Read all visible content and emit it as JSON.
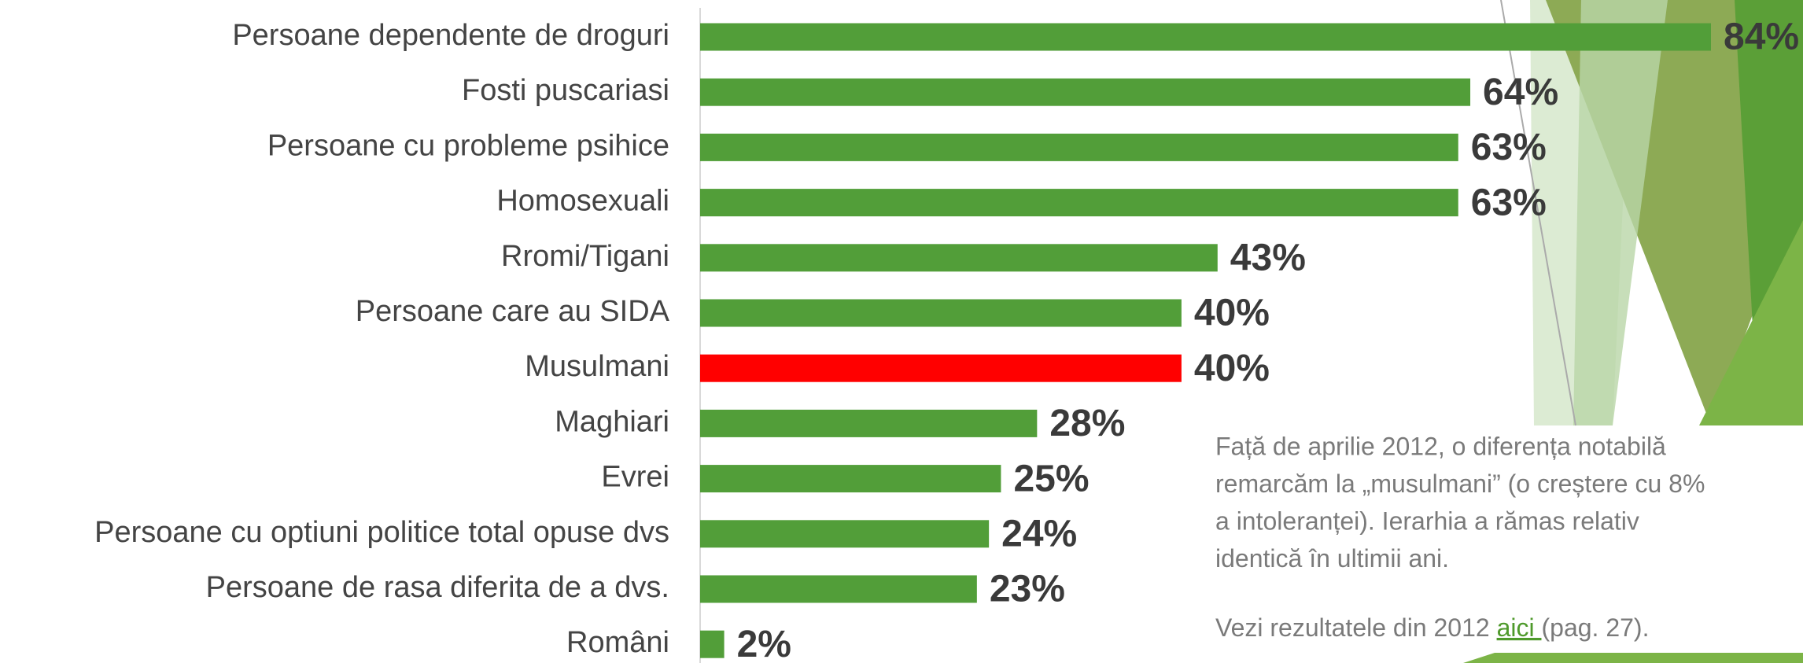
{
  "chart_data": {
    "type": "hbar",
    "categories": [
      "Persoane dependente de droguri",
      "Fosti puscariasi",
      "Persoane cu probleme psihice",
      "Homosexuali",
      "Rromi/Tigani",
      "Persoane care au SIDA",
      "Musulmani",
      "Maghiari",
      "Evrei",
      "Persoane cu optiuni politice total opuse dvs",
      "Persoane de rasa diferita de a dvs.",
      "Români"
    ],
    "values": [
      84,
      64,
      63,
      63,
      43,
      40,
      40,
      28,
      25,
      24,
      23,
      2
    ],
    "value_labels": [
      "84%",
      "64%",
      "63%",
      "63%",
      "43%",
      "40%",
      "40%",
      "28%",
      "25%",
      "24%",
      "23%",
      "2%"
    ],
    "colors": [
      "#529e39",
      "#529e39",
      "#529e39",
      "#529e39",
      "#529e39",
      "#529e39",
      "#ff0000",
      "#529e39",
      "#529e39",
      "#529e39",
      "#529e39",
      "#529e39"
    ],
    "xlim": [
      0,
      100
    ],
    "note_lines": [
      "Față de aprilie 2012, o diferența notabilă",
      "remarcăm la „musulmani” (o creștere cu 8%",
      "a intoleranței). Ierarhia a rămas relativ",
      "identică în ultimii ani."
    ],
    "link_note": {
      "before": "Vezi rezultatele din 2012 ",
      "link": "aici ",
      "after": "(pag. 27)."
    }
  }
}
